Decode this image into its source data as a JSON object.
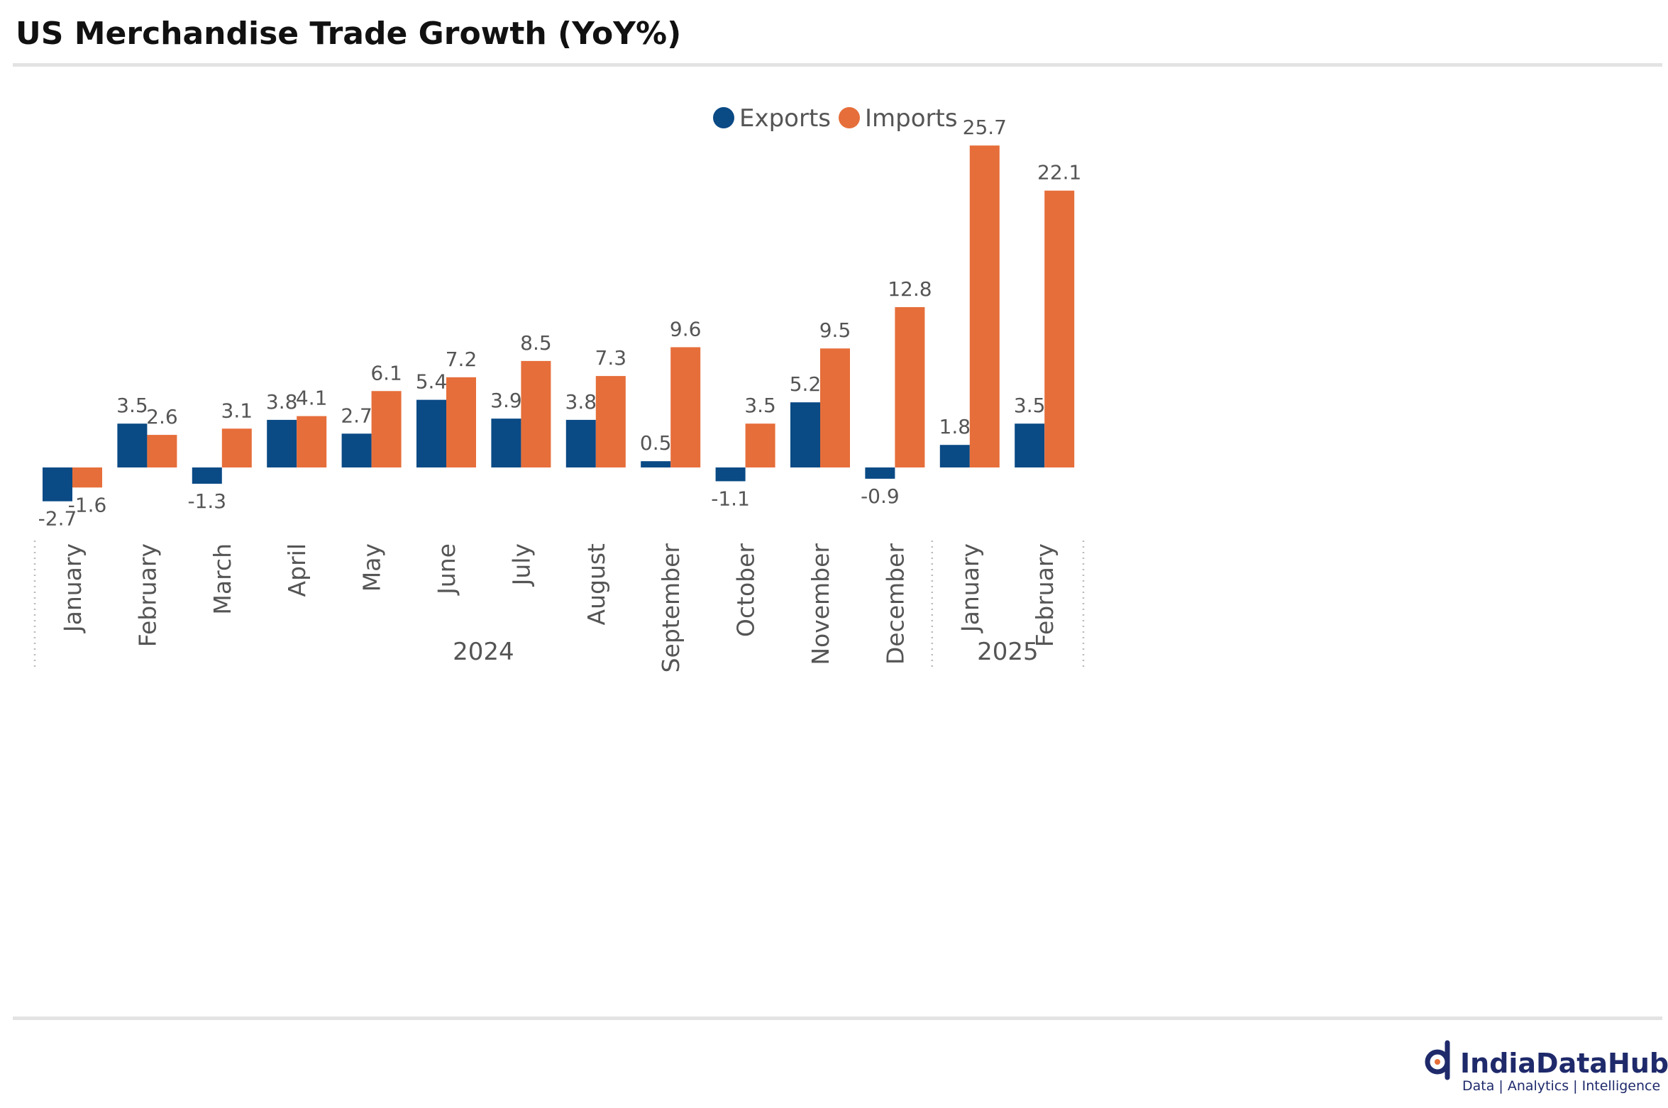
{
  "title": "US Merchandise Trade Growth (YoY%)",
  "colors": {
    "exports": "#0a4a85",
    "imports": "#e66e3a",
    "rule": "#e3e3e3",
    "text": "#555555",
    "brand": "#1f2a6b"
  },
  "chart_data": {
    "type": "bar",
    "categories": [
      "January",
      "February",
      "March",
      "April",
      "May",
      "June",
      "July",
      "August",
      "September",
      "October",
      "November",
      "December",
      "January",
      "February"
    ],
    "groups": [
      {
        "label": "2024",
        "categories": [
          "January",
          "February",
          "March",
          "April",
          "May",
          "June",
          "July",
          "August",
          "September",
          "October",
          "November",
          "December"
        ]
      },
      {
        "label": "2025",
        "categories": [
          "January",
          "February"
        ]
      }
    ],
    "series": [
      {
        "name": "Exports",
        "values": [
          -2.7,
          3.5,
          -1.3,
          3.8,
          2.7,
          5.4,
          3.9,
          3.8,
          0.5,
          -1.1,
          5.2,
          -0.9,
          1.8,
          3.5
        ]
      },
      {
        "name": "Imports",
        "values": [
          -1.6,
          2.6,
          3.1,
          4.1,
          6.1,
          7.2,
          8.5,
          7.3,
          9.6,
          3.5,
          9.5,
          12.8,
          25.7,
          22.1
        ]
      }
    ],
    "ylim": [
      -5.7,
      33.5
    ],
    "legend_position": "top-center",
    "grid": false,
    "data_labels": true
  },
  "logo": {
    "name": "IndiaDataHub",
    "tagline": "Data | Analytics | Intelligence"
  }
}
